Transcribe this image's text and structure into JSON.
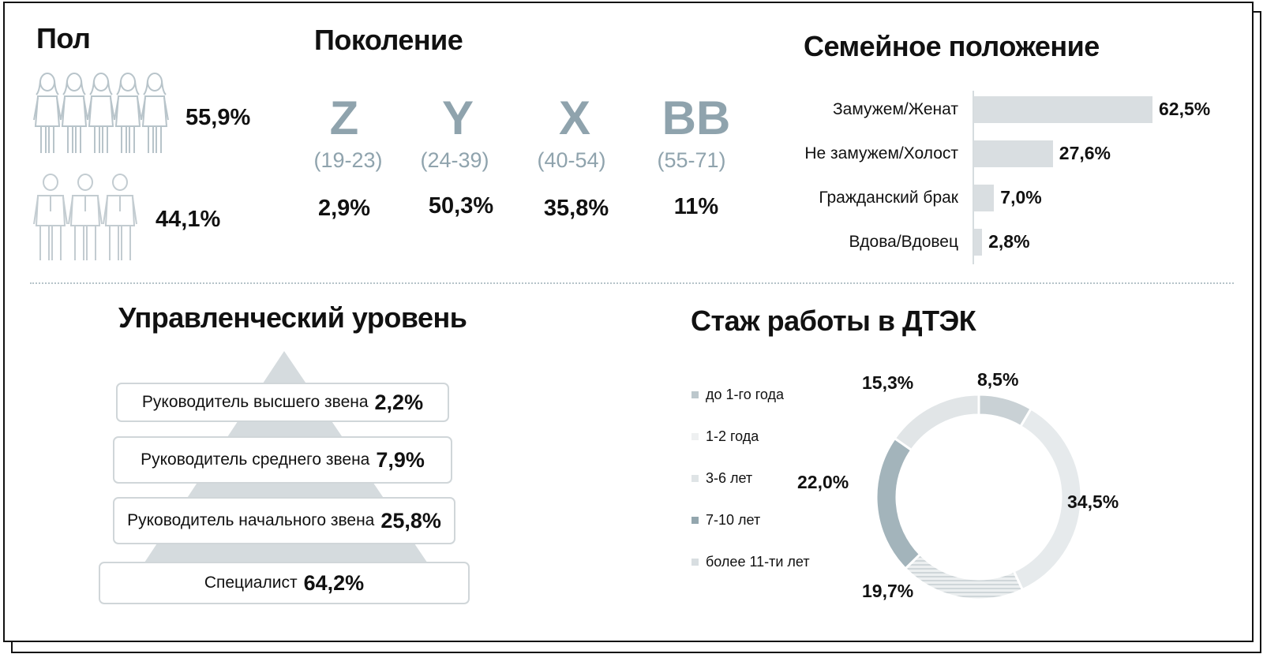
{
  "gender": {
    "title": "Пол",
    "female_pct": "55,9%",
    "male_pct": "44,1%"
  },
  "generation": {
    "title": "Поколение",
    "items": [
      {
        "letter": "Z",
        "range": "(19-23)",
        "value": "2,9%"
      },
      {
        "letter": "Y",
        "range": "(24-39)",
        "value": "50,3%"
      },
      {
        "letter": "X",
        "range": "(40-54)",
        "value": "35,8%"
      },
      {
        "letter": "BB",
        "range": "(55-71)",
        "value": "11%"
      }
    ]
  },
  "management": {
    "title": "Управленческий уровень",
    "levels": [
      {
        "label": "Руководитель высшего звена",
        "value": "2,2%"
      },
      {
        "label": "Руководитель среднего звена",
        "value": "7,9%"
      },
      {
        "label": "Руководитель начального звена",
        "value": "25,8%"
      },
      {
        "label": "Специалист",
        "value": "64,2%"
      }
    ]
  },
  "colors": {
    "bar": "#d9dee1",
    "accent": "#8fa3ad",
    "dark_seg": "#9fb1b8",
    "light_seg": "#e4e8ea",
    "mid_seg": "#c9d1d5"
  },
  "chart_data": [
    {
      "type": "bar",
      "orientation": "horizontal",
      "title": "Семейное положение",
      "categories": [
        "Замужем/Женат",
        "Не замужем/Холост",
        "Гражданский брак",
        "Вдова/Вдовец"
      ],
      "values": [
        62.5,
        27.6,
        7.0,
        2.8
      ],
      "value_labels": [
        "62,5%",
        "27,6%",
        "7,0%",
        "2,8%"
      ],
      "xlim": [
        0,
        62.5
      ]
    },
    {
      "type": "pie",
      "title": "Стаж работы в ДТЭК",
      "categories": [
        "до 1-го года",
        "1-2 года",
        "3-6 лет",
        "7-10 лет",
        "более 11-ти лет"
      ],
      "values": [
        8.5,
        34.5,
        19.7,
        22.0,
        15.3
      ],
      "value_labels": [
        "8,5%",
        "34,5%",
        "19,7%",
        "22,0%",
        "15,3%"
      ],
      "legend": "left"
    }
  ]
}
